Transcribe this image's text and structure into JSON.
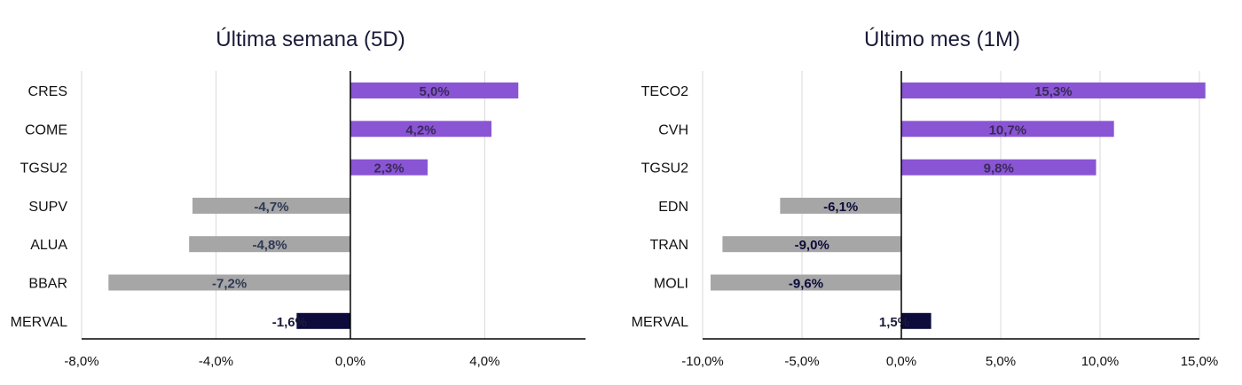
{
  "chart_data": [
    {
      "type": "bar",
      "orientation": "horizontal",
      "title": "Última semana (5D)",
      "categories": [
        "CRES",
        "COME",
        "TGSU2",
        "SUPV",
        "ALUA",
        "BBAR",
        "MERVAL"
      ],
      "values": [
        5.0,
        4.2,
        2.3,
        -4.7,
        -4.8,
        -7.2,
        -1.6
      ],
      "value_labels": [
        "5,0%",
        "4,2%",
        "2,3%",
        "-4,7%",
        "-4,8%",
        "-7,2%",
        "-1,6%"
      ],
      "xlim": [
        -8.0,
        7.0
      ],
      "xticks": [
        -8.0,
        -4.0,
        0.0,
        4.0
      ],
      "xtick_labels": [
        "-8,0%",
        "-4,0%",
        "0,0%",
        "4,0%"
      ],
      "grid": "vertical",
      "colors": {
        "positive": "#8a55d4",
        "negative": "#a6a6a6",
        "index": "#0c0b3b"
      }
    },
    {
      "type": "bar",
      "orientation": "horizontal",
      "title": "Último mes (1M)",
      "categories": [
        "TECO2",
        "CVH",
        "TGSU2",
        "EDN",
        "TRAN",
        "MOLI",
        "MERVAL"
      ],
      "values": [
        15.3,
        10.7,
        9.8,
        -6.1,
        -9.0,
        -9.6,
        1.5
      ],
      "value_labels": [
        "15,3%",
        "10,7%",
        "9,8%",
        "-6,1%",
        "-9,0%",
        "-9,6%",
        "1,5%"
      ],
      "xlim": [
        -10.0,
        15.0
      ],
      "xticks": [
        -10.0,
        -5.0,
        0.0,
        5.0,
        10.0,
        15.0
      ],
      "xtick_labels": [
        "-10,0%",
        "-5,0%",
        "0,0%",
        "5,0%",
        "10,0%",
        "15,0%"
      ],
      "grid": "vertical",
      "colors": {
        "positive": "#8a55d4",
        "negative": "#a6a6a6",
        "index": "#0c0b3b"
      }
    }
  ]
}
